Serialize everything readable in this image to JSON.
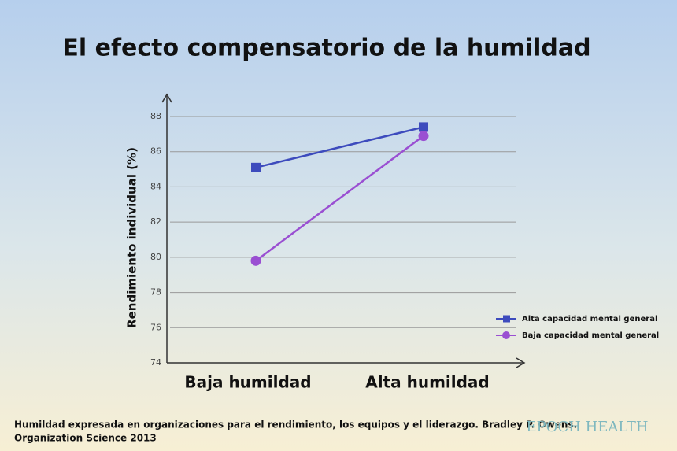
{
  "chart_data": {
    "type": "line",
    "title": "El efecto compensatorio de la humildad",
    "y_label": "Rendimiento individual (%)",
    "categories": [
      "Baja humildad",
      "Alta humildad"
    ],
    "series": [
      {
        "name": "Alta capacidad mental general",
        "color": "#3d4bbd",
        "marker": "square",
        "values": [
          85.1,
          87.4
        ]
      },
      {
        "name": "Baja capacidad mental general",
        "color": "#9a4fd2",
        "marker": "circle",
        "values": [
          79.8,
          86.9
        ]
      }
    ],
    "ylim": [
      74,
      88
    ],
    "yticks": [
      74,
      76,
      78,
      80,
      82,
      84,
      86,
      88
    ],
    "grid": true,
    "legend": "right",
    "footnote": [
      "Humildad expresada en organizaciones para el rendimiento, los equipos y el liderazgo. Bradley P. Owens.",
      "Organization Science 2013"
    ],
    "brand": "EPOCH HEALTH"
  }
}
